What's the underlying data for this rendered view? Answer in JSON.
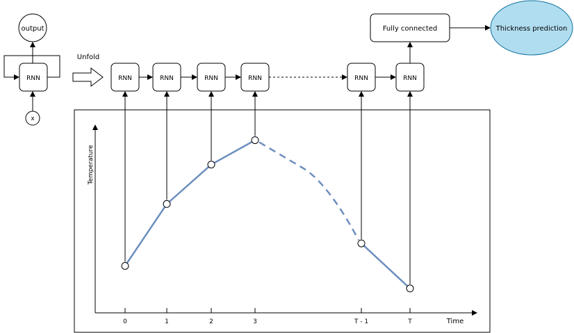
{
  "folded": {
    "output_label": "output",
    "cell_label": "RNN",
    "input_label": "x"
  },
  "unfold_label": "Unfold",
  "chain": [
    {
      "label": "RNN",
      "step": "0"
    },
    {
      "label": "RNN",
      "step": "1"
    },
    {
      "label": "RNN",
      "step": "2"
    },
    {
      "label": "RNN",
      "step": "3"
    },
    {
      "label": "RNN",
      "step": "T - 1"
    },
    {
      "label": "RNN",
      "step": "T"
    }
  ],
  "fc_label": "Fully connected",
  "prediction_label": "Thickness prediction",
  "plot": {
    "ylabel": "Temperature",
    "xlabel": "Time",
    "xticks": [
      "0",
      "1",
      "2",
      "3",
      "T - 1",
      "T"
    ]
  },
  "chart_data": {
    "type": "line",
    "xlabel": "Time",
    "ylabel": "Temperature",
    "categories": [
      "0",
      "1",
      "2",
      "3",
      "T - 1",
      "T"
    ],
    "series": [
      {
        "values": [
          0.25,
          0.58,
          0.79,
          0.92,
          0.37,
          0.13
        ]
      }
    ],
    "dashed_segment_between": [
      "3",
      "T - 1"
    ]
  },
  "colors": {
    "line": "#6c8ebf",
    "prediction_fill": "#b1ddf0",
    "prediction_stroke": "#10739e"
  }
}
